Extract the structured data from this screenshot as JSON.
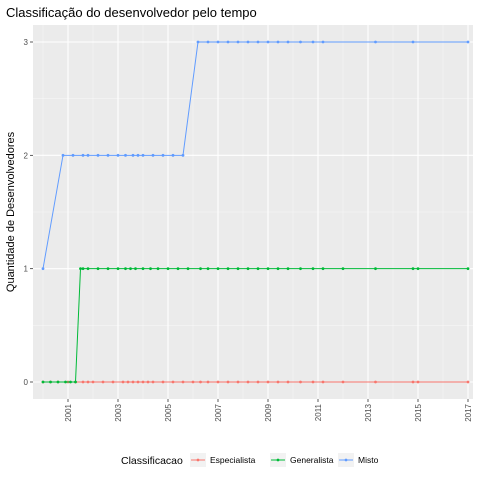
{
  "chart_data": {
    "type": "line",
    "title": "Classificação do desenvolvedor pelo tempo",
    "xlabel": "",
    "ylabel": "Quantidade de Desenvolvedores",
    "xlim": [
      1999.6,
      2017.2
    ],
    "ylim": [
      -0.15,
      3.15
    ],
    "x_ticks": [
      "2001",
      "2003",
      "2005",
      "2007",
      "2009",
      "2011",
      "2013",
      "2015",
      "2017"
    ],
    "y_ticks": [
      "0",
      "1",
      "2",
      "3"
    ],
    "grid": true,
    "legend_title": "Classificacao",
    "legend_position": "bottom",
    "series": [
      {
        "name": "Especialista",
        "color": "#F8766D",
        "x": [
          2000.0,
          2000.3,
          2000.6,
          2001.0,
          2001.3,
          2001.6,
          2001.8,
          2002.0,
          2002.4,
          2002.8,
          2003.2,
          2003.4,
          2003.6,
          2003.8,
          2004.0,
          2004.2,
          2004.4,
          2004.8,
          2005.2,
          2005.6,
          2006.0,
          2006.3,
          2006.6,
          2007.0,
          2007.4,
          2007.8,
          2008.2,
          2008.6,
          2009.0,
          2009.4,
          2009.8,
          2010.3,
          2010.8,
          2011.2,
          2012.0,
          2013.3,
          2014.8,
          2015.0,
          2017.0
        ],
        "y": [
          0,
          0,
          0,
          0,
          0,
          0,
          0,
          0,
          0,
          0,
          0,
          0,
          0,
          0,
          0,
          0,
          0,
          0,
          0,
          0,
          0,
          0,
          0,
          0,
          0,
          0,
          0,
          0,
          0,
          0,
          0,
          0,
          0,
          0,
          0,
          0,
          0,
          0,
          0
        ]
      },
      {
        "name": "Generalista",
        "color": "#00BA38",
        "x": [
          2000.0,
          2000.3,
          2000.6,
          2000.9,
          2001.1,
          2001.3,
          2001.5,
          2001.6,
          2001.8,
          2002.2,
          2002.6,
          2003.0,
          2003.3,
          2003.5,
          2003.7,
          2004.0,
          2004.3,
          2004.6,
          2005.0,
          2005.4,
          2005.8,
          2006.3,
          2006.6,
          2007.0,
          2007.4,
          2007.8,
          2008.2,
          2008.6,
          2009.0,
          2009.4,
          2009.8,
          2010.3,
          2010.8,
          2011.2,
          2012.0,
          2013.3,
          2014.8,
          2015.0,
          2017.0
        ],
        "y": [
          0,
          0,
          0,
          0,
          0,
          0,
          1,
          1,
          1,
          1,
          1,
          1,
          1,
          1,
          1,
          1,
          1,
          1,
          1,
          1,
          1,
          1,
          1,
          1,
          1,
          1,
          1,
          1,
          1,
          1,
          1,
          1,
          1,
          1,
          1,
          1,
          1,
          1,
          1
        ]
      },
      {
        "name": "Misto",
        "color": "#619CFF",
        "x": [
          2000.0,
          2000.8,
          2001.2,
          2001.6,
          2001.8,
          2002.2,
          2002.6,
          2003.0,
          2003.3,
          2003.6,
          2003.8,
          2004.0,
          2004.4,
          2004.8,
          2005.2,
          2005.6,
          2006.2,
          2006.6,
          2007.0,
          2007.4,
          2007.8,
          2008.2,
          2008.6,
          2009.0,
          2009.4,
          2009.8,
          2010.3,
          2010.8,
          2011.2,
          2013.3,
          2014.8,
          2017.0
        ],
        "y": [
          1,
          2,
          2,
          2,
          2,
          2,
          2,
          2,
          2,
          2,
          2,
          2,
          2,
          2,
          2,
          2,
          3,
          3,
          3,
          3,
          3,
          3,
          3,
          3,
          3,
          3,
          3,
          3,
          3,
          3,
          3,
          3
        ]
      }
    ]
  }
}
